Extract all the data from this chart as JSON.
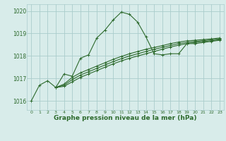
{
  "background_color": "#d8ecea",
  "grid_color": "#aacccc",
  "line_color": "#2d6a2d",
  "marker_color": "#2d6a2d",
  "xlabel": "Graphe pression niveau de la mer (hPa)",
  "xlabel_fontsize": 6.5,
  "xlim": [
    -0.5,
    23.5
  ],
  "ylim": [
    1015.6,
    1020.3
  ],
  "yticks": [
    1016,
    1017,
    1018,
    1019,
    1020
  ],
  "xticks": [
    0,
    1,
    2,
    3,
    4,
    5,
    6,
    7,
    8,
    9,
    10,
    11,
    12,
    13,
    14,
    15,
    16,
    17,
    18,
    19,
    20,
    21,
    22,
    23
  ],
  "series": [
    {
      "x": [
        0,
        1,
        2,
        3,
        4,
        5,
        6,
        7,
        8,
        9,
        10,
        11,
        12,
        13,
        14,
        15,
        16,
        17,
        18,
        19,
        20,
        21,
        22,
        23
      ],
      "y": [
        1016.0,
        1016.7,
        1016.9,
        1016.6,
        1017.2,
        1017.1,
        1017.9,
        1018.05,
        1018.8,
        1019.15,
        1019.6,
        1019.95,
        1019.85,
        1019.5,
        1018.85,
        1018.1,
        1018.05,
        1018.1,
        1018.1,
        1018.55,
        1018.55,
        1018.6,
        1018.65,
        1018.7
      ]
    },
    {
      "x": [
        3,
        4,
        5,
        6,
        7,
        8,
        9,
        10,
        11,
        12,
        13,
        14,
        15,
        16,
        17,
        18,
        19,
        20,
        21,
        22,
        23
      ],
      "y": [
        1016.6,
        1016.65,
        1016.85,
        1017.05,
        1017.2,
        1017.35,
        1017.5,
        1017.65,
        1017.78,
        1017.9,
        1018.0,
        1018.1,
        1018.2,
        1018.3,
        1018.4,
        1018.48,
        1018.55,
        1018.6,
        1018.65,
        1018.68,
        1018.72
      ]
    },
    {
      "x": [
        3,
        4,
        5,
        6,
        7,
        8,
        9,
        10,
        11,
        12,
        13,
        14,
        15,
        16,
        17,
        18,
        19,
        20,
        21,
        22,
        23
      ],
      "y": [
        1016.6,
        1016.7,
        1016.95,
        1017.15,
        1017.3,
        1017.45,
        1017.6,
        1017.75,
        1017.88,
        1018.0,
        1018.1,
        1018.2,
        1018.3,
        1018.38,
        1018.47,
        1018.55,
        1018.6,
        1018.65,
        1018.68,
        1018.72,
        1018.76
      ]
    },
    {
      "x": [
        3,
        4,
        5,
        6,
        7,
        8,
        9,
        10,
        11,
        12,
        13,
        14,
        15,
        16,
        17,
        18,
        19,
        20,
        21,
        22,
        23
      ],
      "y": [
        1016.6,
        1016.75,
        1017.05,
        1017.25,
        1017.4,
        1017.55,
        1017.7,
        1017.85,
        1017.98,
        1018.1,
        1018.2,
        1018.3,
        1018.38,
        1018.46,
        1018.55,
        1018.62,
        1018.67,
        1018.7,
        1018.73,
        1018.76,
        1018.8
      ]
    }
  ]
}
